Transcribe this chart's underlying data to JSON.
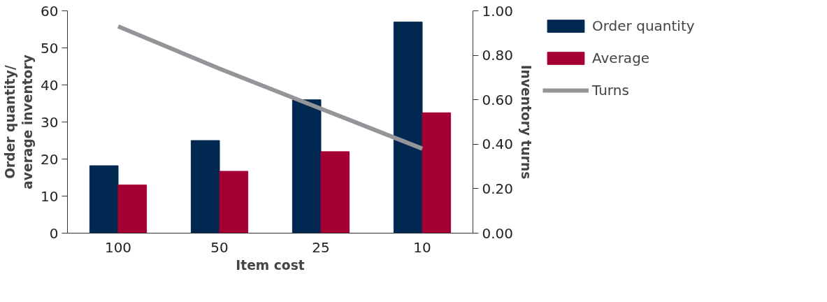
{
  "chart_data": {
    "type": "bar",
    "xlabel": "Item cost",
    "ylabel": "Order quantity/\naverage inventory",
    "y2label": "Inventory turns",
    "categories": [
      "100",
      "50",
      "25",
      "10"
    ],
    "series": [
      {
        "name": "Order quantity",
        "color": "#002850",
        "values": [
          18.2,
          25,
          36,
          57
        ]
      },
      {
        "name": "Average",
        "color": "#a50034",
        "values": [
          13,
          16.7,
          22,
          32.5
        ]
      },
      {
        "name": "Turns",
        "type": "line",
        "axis": "y2",
        "color": "#939598",
        "values": [
          0.93,
          0.74,
          0.56,
          0.38
        ]
      }
    ],
    "ylim": [
      0,
      60
    ],
    "yticks": [
      0,
      10,
      20,
      30,
      40,
      50,
      60
    ],
    "y2lim": [
      0,
      1
    ],
    "y2ticks": [
      {
        "value": 0,
        "label": "0.00"
      },
      {
        "value": 0.2,
        "label": "0.20"
      },
      {
        "value": 0.4,
        "label": "0.40"
      },
      {
        "value": 0.6,
        "label": "0.60"
      },
      {
        "value": 0.8,
        "label": "0.80"
      },
      {
        "value": 1,
        "label": "1.00"
      }
    ],
    "legend": "right",
    "grid": false
  }
}
